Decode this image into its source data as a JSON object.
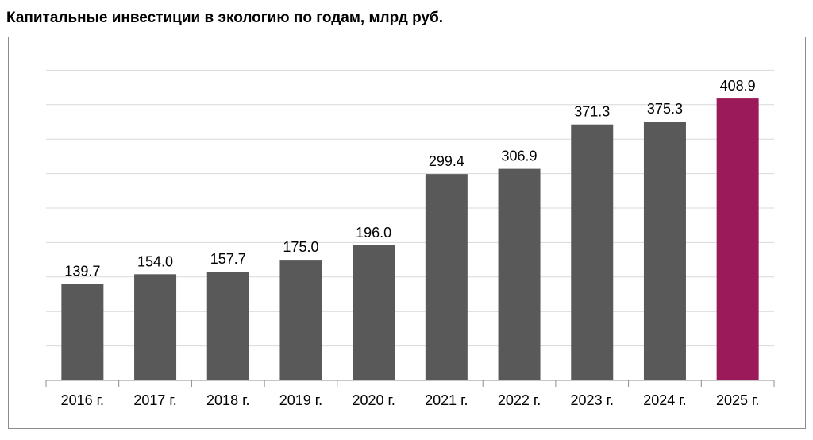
{
  "title": "Капитальные инвестиции в экологию по годам, млрд руб.",
  "chart_data": {
    "type": "bar",
    "title": "Капитальные инвестиции в экологию по годам, млрд руб.",
    "categories": [
      "2016 г.",
      "2017 г.",
      "2018 г.",
      "2019 г.",
      "2020 г.",
      "2021 г.",
      "2022 г.",
      "2023 г.",
      "2024 г.",
      "2025 г."
    ],
    "values": [
      139.7,
      154.0,
      157.7,
      175.0,
      196.0,
      299.4,
      306.9,
      371.3,
      375.3,
      408.9
    ],
    "value_labels": [
      "139.7",
      "154.0",
      "157.7",
      "175.0",
      "196.0",
      "299.4",
      "306.9",
      "371.3",
      "375.3",
      "408.9"
    ],
    "ylim": [
      0,
      450
    ],
    "grid": true,
    "legend": "none",
    "xlabel": "",
    "ylabel": "",
    "colors": {
      "default": "#595959",
      "highlight": "#9b1b5a",
      "highlight_index": 9,
      "grid": "#d9d9d9",
      "axis": "#8c8c8c"
    }
  }
}
